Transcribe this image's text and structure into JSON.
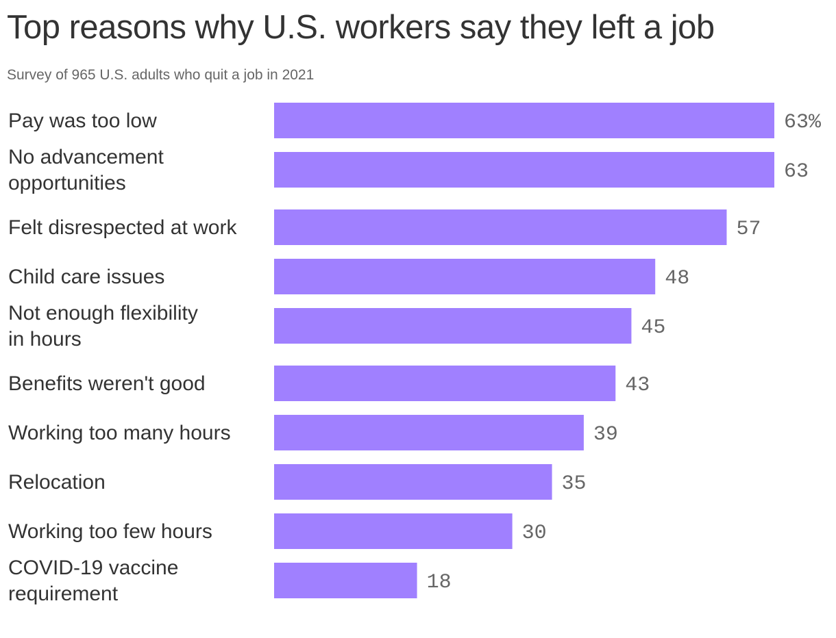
{
  "chart_data": {
    "type": "bar",
    "orientation": "horizontal",
    "title": "Top reasons why U.S. workers say they left a job",
    "subtitle": "Survey of 965 U.S. adults who quit a job in 2021",
    "categories": [
      "Pay was too low",
      "No advancement opportunities",
      "Felt disrespected at work",
      "Child care issues",
      "Not enough flexibility in hours",
      "Benefits weren't good",
      "Working too many hours",
      "Relocation",
      "Working too few hours",
      "COVID-19 vaccine requirement"
    ],
    "category_label_lines": [
      [
        "Pay was too low"
      ],
      [
        "No advancement",
        "opportunities"
      ],
      [
        "Felt disrespected at work"
      ],
      [
        "Child care issues"
      ],
      [
        "Not enough flexibility",
        "in hours"
      ],
      [
        "Benefits weren't good"
      ],
      [
        "Working too many hours"
      ],
      [
        "Relocation"
      ],
      [
        "Working too few hours"
      ],
      [
        "COVID-19 vaccine",
        "requirement"
      ]
    ],
    "values": [
      63,
      63,
      57,
      48,
      45,
      43,
      39,
      35,
      30,
      18
    ],
    "value_labels": [
      "63%",
      "63",
      "57",
      "48",
      "45",
      "43",
      "39",
      "35",
      "30",
      "18"
    ],
    "xlim": [
      0,
      63
    ],
    "xlabel": "",
    "ylabel": "",
    "grid": false,
    "legend": "none",
    "bar_color": "#a080ff"
  }
}
